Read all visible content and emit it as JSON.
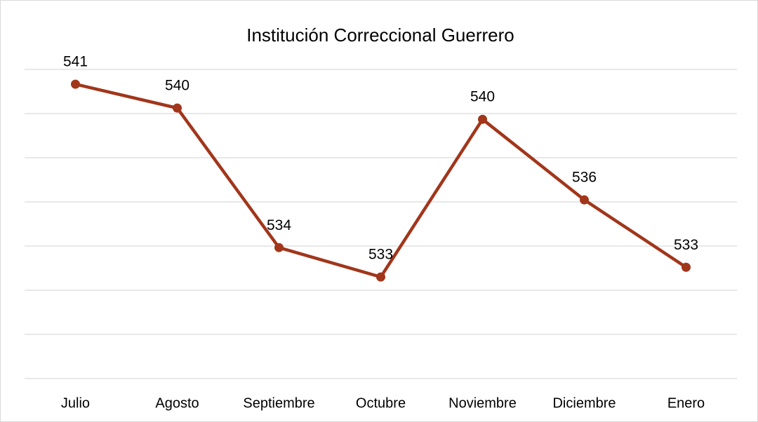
{
  "chart_data": {
    "type": "line",
    "title": "Institución Correccional Guerrero",
    "categories": [
      "Julio",
      "Agosto",
      "Septiembre",
      "Octubre",
      "Noviembre",
      "Diciembre",
      "Enero"
    ],
    "series": [
      {
        "name": null,
        "color": "#a1361b",
        "values": [
          541.33,
          540.25,
          533.93,
          532.6,
          539.74,
          536.09,
          533.04
        ],
        "value_labels": [
          "541",
          "540",
          "534",
          "533",
          "540",
          "536",
          "533"
        ]
      }
    ],
    "ylim": [
      528,
      542
    ],
    "yticks": [
      528,
      530,
      532,
      534,
      536,
      538,
      540,
      542
    ],
    "grid": true
  }
}
